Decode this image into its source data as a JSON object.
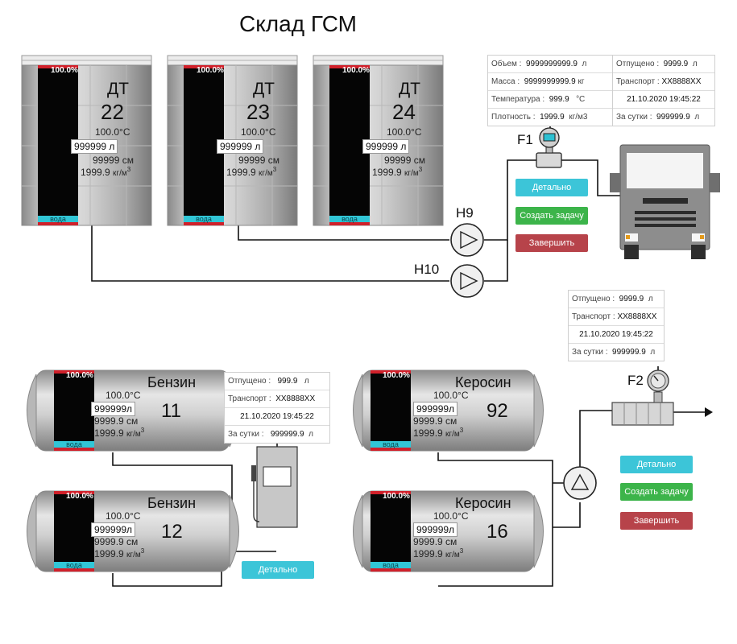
{
  "title": "Склад ГСМ",
  "colors": {
    "level_red": "#d0202a",
    "water_cyan": "#31c6d6",
    "btn_cyan": "#3cc5d8",
    "btn_green": "#3cb44a",
    "btn_red": "#b7434a"
  },
  "vertical_tanks": [
    {
      "name": "ДТ",
      "number": "22",
      "fill_pct": "100.0%",
      "temp": "100.0°С",
      "volume_value": "999999",
      "volume_unit": "л",
      "level": "99999",
      "level_unit": "см",
      "density": "1999.9",
      "density_unit": "кг/м",
      "density_exp": "3",
      "water_label": "вода"
    },
    {
      "name": "ДТ",
      "number": "23",
      "fill_pct": "100.0%",
      "temp": "100.0°С",
      "volume_value": "999999",
      "volume_unit": "л",
      "level": "99999",
      "level_unit": "см",
      "density": "1999.9",
      "density_unit": "кг/м",
      "density_exp": "3",
      "water_label": "вода"
    },
    {
      "name": "ДТ",
      "number": "24",
      "fill_pct": "100.0%",
      "temp": "100.0°С",
      "volume_value": "999999",
      "volume_unit": "л",
      "level": "99999",
      "level_unit": "см",
      "density": "1999.9",
      "density_unit": "кг/м",
      "density_exp": "3",
      "water_label": "вода"
    }
  ],
  "horizontal_tanks": [
    {
      "name": "Бензин",
      "number": "11",
      "fill_pct": "100.0%",
      "temp": "100.0°С",
      "volume_value": "999999",
      "volume_unit": "л",
      "level": "9999.9",
      "level_unit": "см",
      "density": "1999.9",
      "density_unit": "кг/м",
      "density_exp": "3",
      "water_label": "вода"
    },
    {
      "name": "Бензин",
      "number": "12",
      "fill_pct": "100.0%",
      "temp": "100.0°С",
      "volume_value": "999999",
      "volume_unit": "л",
      "level": "9999.9",
      "level_unit": "см",
      "density": "1999.9",
      "density_unit": "кг/м",
      "density_exp": "3",
      "water_label": "вода"
    },
    {
      "name": "Керосин",
      "number": "92",
      "fill_pct": "100.0%",
      "temp": "100.0°С",
      "volume_value": "999999",
      "volume_unit": "л",
      "level": "9999.9",
      "level_unit": "см",
      "density": "1999.9",
      "density_unit": "кг/м",
      "density_exp": "3",
      "water_label": "вода"
    },
    {
      "name": "Керосин",
      "number": "16",
      "fill_pct": "100.0%",
      "temp": "100.0°С",
      "volume_value": "999999",
      "volume_unit": "л",
      "level": "9999.9",
      "level_unit": "см",
      "density": "1999.9",
      "density_unit": "кг/м",
      "density_exp": "3",
      "water_label": "вода"
    }
  ],
  "pumps": {
    "h9": "H9",
    "h10": "H10"
  },
  "flowmeters": {
    "f1": "F1",
    "f2": "F2"
  },
  "f1_panel": {
    "volume_label": "Объем :",
    "volume_value": "9999999999.9",
    "volume_unit": "л",
    "mass_label": "Масса :",
    "mass_value": "9999999999.9",
    "mass_unit": "кг",
    "temp_label": "Температура :",
    "temp_value": "999.9",
    "temp_unit": "°C",
    "density_label": "Плотность :",
    "density_value": "1999.9",
    "density_unit": "кг/м3",
    "released_label": "Отпущено :",
    "released_value": "9999.9",
    "released_unit": "л",
    "transport_label": "Транспорт :",
    "transport_value": "XX8888XX",
    "datetime": "21.10.2020 19:45:22",
    "per_day_label": "За сутки :",
    "per_day_value": "999999.9",
    "per_day_unit": "л"
  },
  "f2_panel": {
    "released_label": "Отпущено :",
    "released_value": "9999.9",
    "released_unit": "л",
    "transport_label": "Транспорт :",
    "transport_value": "XX8888XX",
    "datetime": "21.10.2020 19:45:22",
    "per_day_label": "За сутки :",
    "per_day_value": "999999.9",
    "per_day_unit": "л"
  },
  "dispenser_panel": {
    "released_label": "Отпущено :",
    "released_value": "999.9",
    "released_unit": "л",
    "transport_label": "Транспорт :",
    "transport_value": "XX8888XX",
    "datetime": "21.10.2020 19:45:22",
    "per_day_label": "За сутки :",
    "per_day_value": "999999.9",
    "per_day_unit": "л"
  },
  "buttons": {
    "detail": "Детально",
    "create_task": "Создать задачу",
    "finish": "Завершить"
  }
}
